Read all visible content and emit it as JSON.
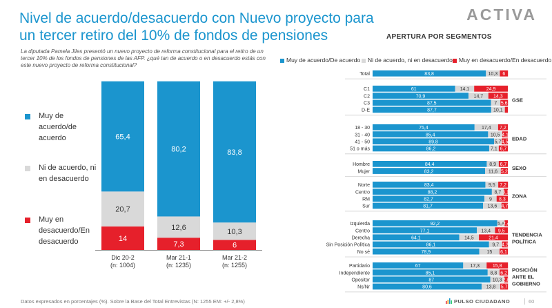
{
  "header": {
    "title": "Nivel de acuerdo/desacuerdo con Nuevo proyecto para un tercer retiro del 10% de fondos de pensiones",
    "logo": "ACTIVA",
    "question": "La diputada Pamela Jiles presentó un nuevo proyecto de reforma constitucional para el retiro de un tercer 10% de los fondos de pensiones de las AFP. ¿qué tan de acuerdo o en desacuerdo estás con este nuevo proyecto de reforma constitucional?"
  },
  "colors": {
    "agree": "#1b95ce",
    "neutral": "#d9d9d9",
    "disagree": "#e6202b"
  },
  "left_legend": {
    "agree": "Muy de acuerdo/de acuerdo",
    "neutral": "Ni de acuerdo, ni en desacuerdo",
    "disagree": "Muy en desacuerdo/En desacuerdo"
  },
  "segments_panel": {
    "title": "APERTURA POR SEGMENTOS",
    "legend": [
      "Muy de acuerdo/De acuerdo",
      "Ni de acuerdo, ni en desacuerdo",
      "Muy en desacuerdo/En desacuerdo"
    ]
  },
  "chart_data": [
    {
      "type": "bar",
      "stacked": true,
      "orientation": "vertical",
      "categories": [
        "Dic 20-2",
        "Mar 21-1",
        "Mar 21-2"
      ],
      "sample_labels": [
        "(n: 1004)",
        "(n: 1235)",
        "(n: 1255)"
      ],
      "series": [
        {
          "name": "Muy de acuerdo/de acuerdo",
          "values": [
            65.4,
            80.2,
            83.8
          ]
        },
        {
          "name": "Ni de acuerdo, ni en desacuerdo",
          "values": [
            20.7,
            12.6,
            10.3
          ]
        },
        {
          "name": "Muy en desacuerdo/En desacuerdo",
          "values": [
            14,
            7.3,
            6
          ]
        }
      ],
      "value_labels": [
        [
          "65,4",
          "80,2",
          "83,8"
        ],
        [
          "20,7",
          "12,6",
          "10,3"
        ],
        [
          "14",
          "7,3",
          "6"
        ]
      ],
      "ylim": [
        0,
        100
      ],
      "grid": false
    },
    {
      "type": "bar",
      "stacked": true,
      "orientation": "horizontal",
      "xlim": [
        0,
        100
      ],
      "grid": false,
      "groups": [
        {
          "label": "",
          "rows": [
            {
              "label": "Total",
              "values": [
                83.8,
                10.3,
                6
              ],
              "labels": [
                "83,8",
                "10,3",
                "6"
              ]
            }
          ]
        },
        {
          "label": "GSE",
          "rows": [
            {
              "label": "C1",
              "values": [
                61,
                14.1,
                24.9
              ],
              "labels": [
                "61",
                "14,1",
                "24,9"
              ]
            },
            {
              "label": "C2",
              "values": [
                70.9,
                14.7,
                14.3
              ],
              "labels": [
                "70,9",
                "14,7",
                "14,3"
              ]
            },
            {
              "label": "C3",
              "values": [
                87.5,
                7,
                5.6
              ],
              "labels": [
                "87,5",
                "7",
                "5,6"
              ]
            },
            {
              "label": "D-E",
              "values": [
                87.7,
                10.1,
                2.2
              ],
              "labels": [
                "87,7",
                "10,1",
                ""
              ]
            }
          ]
        },
        {
          "label": "EDAD",
          "rows": [
            {
              "label": "18 - 30",
              "values": [
                75.4,
                17.4,
                7.2
              ],
              "labels": [
                "75,4",
                "17,4",
                "7,2"
              ]
            },
            {
              "label": "31 - 40",
              "values": [
                85.4,
                10.5,
                4.1
              ],
              "labels": [
                "85,4",
                "10,5",
                "4,1"
              ]
            },
            {
              "label": "41 - 50",
              "values": [
                89.8,
                5.7,
                4.5
              ],
              "labels": [
                "89,8",
                "5,7",
                "4,5"
              ]
            },
            {
              "label": "51 o más",
              "values": [
                86.2,
                7.1,
                6.7
              ],
              "labels": [
                "86,2",
                "7,1",
                "6,7"
              ]
            }
          ]
        },
        {
          "label": "SEXO",
          "rows": [
            {
              "label": "Hombre",
              "values": [
                84.4,
                8.9,
                6.7
              ],
              "labels": [
                "84,4",
                "8,9",
                "6,7"
              ]
            },
            {
              "label": "Mujer",
              "values": [
                83.2,
                11.6,
                5.2
              ],
              "labels": [
                "83,2",
                "11,6",
                "5,2"
              ]
            }
          ]
        },
        {
          "label": "ZONA",
          "rows": [
            {
              "label": "Norte",
              "values": [
                83.4,
                9.5,
                7.2
              ],
              "labels": [
                "83,4",
                "9,5",
                "7,2"
              ]
            },
            {
              "label": "Centro",
              "values": [
                88.2,
                8.7,
                3.1
              ],
              "labels": [
                "88,2",
                "8,7",
                "3,1"
              ]
            },
            {
              "label": "RM",
              "values": [
                82.7,
                9,
                8.3
              ],
              "labels": [
                "82,7",
                "9",
                "8,3"
              ]
            },
            {
              "label": "Sur",
              "values": [
                81.7,
                13.6,
                4.7
              ],
              "labels": [
                "81,7",
                "13,6",
                "4,7"
              ]
            }
          ]
        },
        {
          "label": "TENDENCIA POLÍTICA",
          "rows": [
            {
              "label": "Izquierda",
              "values": [
                92.2,
                5.4,
                2.4
              ],
              "labels": [
                "92,2",
                "5,4",
                "2,4"
              ]
            },
            {
              "label": "Centro",
              "values": [
                77.1,
                13.4,
                9.5
              ],
              "labels": [
                "77,1",
                "13,4",
                "9,5"
              ]
            },
            {
              "label": "Derecha",
              "values": [
                64.1,
                14.5,
                21.4
              ],
              "labels": [
                "64,1",
                "14,5",
                "21,4"
              ]
            },
            {
              "label": "Sin Posición Política",
              "values": [
                86.1,
                9.7,
                4.2
              ],
              "labels": [
                "86,1",
                "9,7",
                "4,2"
              ]
            },
            {
              "label": "No sé",
              "values": [
                78.9,
                15,
                6.1
              ],
              "labels": [
                "78,9",
                "15",
                "6,1"
              ]
            }
          ]
        },
        {
          "label": "POSICIÓN ANTE EL GOBIERNO",
          "rows": [
            {
              "label": "Partidario",
              "values": [
                67,
                17.3,
                15.8
              ],
              "labels": [
                "67",
                "17,3",
                "15,8"
              ]
            },
            {
              "label": "Independiente",
              "values": [
                85.1,
                8.8,
                6.2
              ],
              "labels": [
                "85,1",
                "8,8",
                "6,2"
              ]
            },
            {
              "label": "Opositor",
              "values": [
                87,
                10.3,
                2.8
              ],
              "labels": [
                "87",
                "10,3",
                "2,8"
              ]
            },
            {
              "label": "Ns/Nr",
              "values": [
                80.6,
                13.8,
                5.7
              ],
              "labels": [
                "80,6",
                "13,8",
                "5,7"
              ]
            }
          ]
        }
      ]
    }
  ],
  "footer": {
    "note": "Datos expresados en porcentajes (%). Sobre la Base del Total Entrevistas (N: 1255  EM: +/- 2,8%)",
    "brand": "PULSO CIUDADANO",
    "page": "60"
  }
}
